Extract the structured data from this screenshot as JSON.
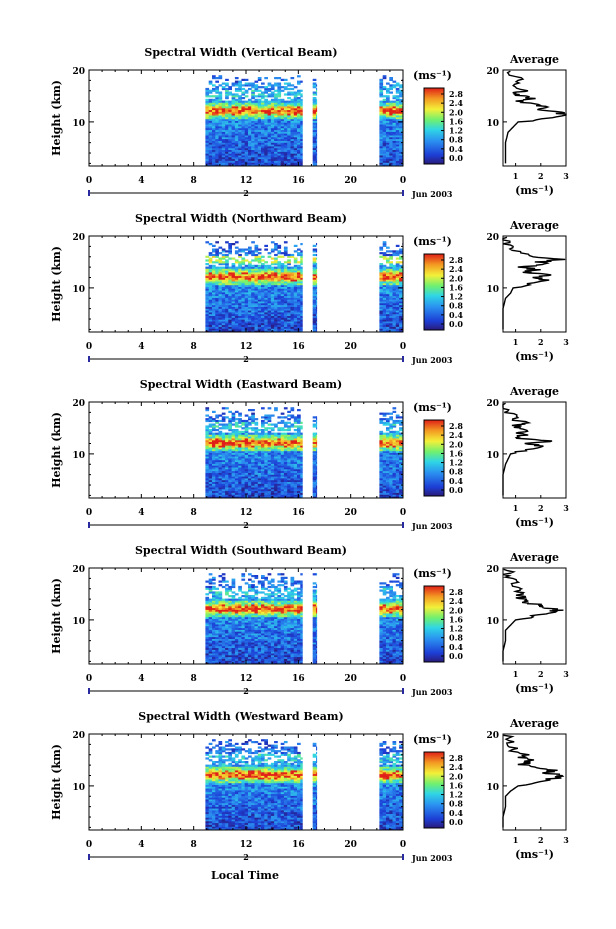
{
  "panels": [
    {
      "title": "Spectral Width (Vertical Beam)"
    },
    {
      "title": "Spectral Width (Northward Beam)"
    },
    {
      "title": "Spectral Width (Eastward Beam)"
    },
    {
      "title": "Spectral Width (Southward Beam)"
    },
    {
      "title": "Spectral Width (Westward Beam)"
    }
  ],
  "common": {
    "ylabel": "Height (km)",
    "unit_label": "(ms⁻¹)",
    "avg_title": "Average",
    "avg_xlabel": "(ms⁻¹)",
    "date_label": "Jun 2003",
    "day_label": "2",
    "xlabel": "Local Time",
    "colorbar_ticks": [
      "0.0",
      "0.4",
      "0.8",
      "1.2",
      "1.6",
      "2.0",
      "2.4",
      "2.8"
    ],
    "time_ticks": [
      "0",
      "4",
      "8",
      "12",
      "16",
      "20",
      "0"
    ],
    "height_ticks": [
      "10",
      "20"
    ]
  },
  "chart_data": {
    "type": "heatmap",
    "x_range": [
      0,
      24
    ],
    "y_range": [
      1.5,
      20
    ],
    "color_range": [
      0,
      3.0
    ],
    "data_time_segments": [
      [
        8.9,
        16.3
      ],
      [
        17.1,
        17.4
      ],
      [
        22.2,
        24.0
      ]
    ],
    "average_profile": {
      "type": "line",
      "height_km": [
        2,
        4,
        6,
        8,
        9,
        10,
        10.8,
        11.5,
        12,
        12.5,
        13,
        13.5,
        14,
        14.5,
        15,
        15.5,
        16,
        17,
        18,
        19,
        20
      ],
      "width_per_panel": [
        [
          0.6,
          0.6,
          0.6,
          0.7,
          0.9,
          1.1,
          2.5,
          2.9,
          2.6,
          1.8,
          2.2,
          1.5,
          1.2,
          1.6,
          1.2,
          1.0,
          1.4,
          0.9,
          1.2,
          0.8,
          0.7
        ],
        [
          0.5,
          0.5,
          0.5,
          0.6,
          0.8,
          0.9,
          1.5,
          2.1,
          1.7,
          2.6,
          1.4,
          1.8,
          1.3,
          2.2,
          2.0,
          2.9,
          1.6,
          1.0,
          0.8,
          0.6,
          0.6
        ],
        [
          0.5,
          0.5,
          0.5,
          0.6,
          0.7,
          0.8,
          1.5,
          2.0,
          1.5,
          2.4,
          1.2,
          1.3,
          1.1,
          1.5,
          1.2,
          1.0,
          1.3,
          0.9,
          0.8,
          0.6,
          0.6
        ],
        [
          0.5,
          0.5,
          0.6,
          0.6,
          0.8,
          1.0,
          1.8,
          2.5,
          2.7,
          2.0,
          1.8,
          1.3,
          1.2,
          1.3,
          1.1,
          1.0,
          1.2,
          0.9,
          0.8,
          0.7,
          0.6
        ],
        [
          0.5,
          0.5,
          0.6,
          0.6,
          0.8,
          1.1,
          1.8,
          2.6,
          2.9,
          2.2,
          2.5,
          1.6,
          1.3,
          1.4,
          1.7,
          1.1,
          1.3,
          0.9,
          0.8,
          0.7,
          0.6
        ]
      ],
      "x_ticks_first": [
        "1",
        "2",
        "3"
      ],
      "x_ticks_rest": [
        "1",
        "2",
        "3"
      ],
      "x_range": [
        0.5,
        3.0
      ]
    }
  }
}
